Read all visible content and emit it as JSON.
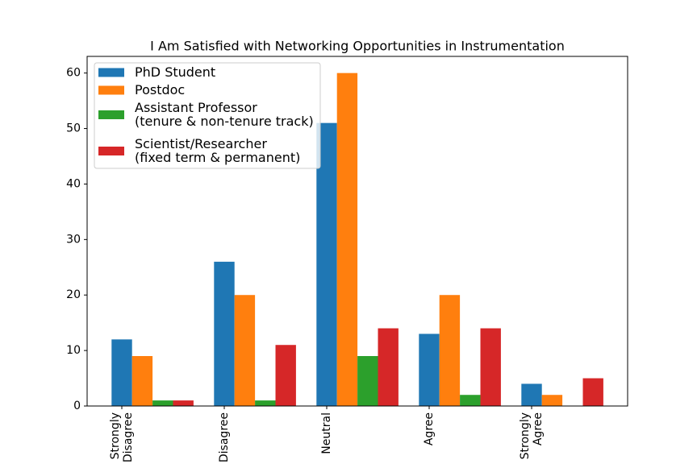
{
  "chart_data": {
    "type": "bar",
    "title": "I Am Satisfied with Networking Opportunities in Instrumentation",
    "categories": [
      "Strongly\nDisagree",
      "Disagree",
      "Neutral",
      "Agree",
      "Strongly\nAgree"
    ],
    "series": [
      {
        "name": "PhD Student",
        "color": "#1f77b4",
        "values": [
          12,
          26,
          51,
          13,
          4
        ]
      },
      {
        "name": "Postdoc",
        "color": "#ff7f0e",
        "values": [
          9,
          20,
          60,
          20,
          2
        ]
      },
      {
        "name": "Assistant Professor\n(tenure & non-tenure track)",
        "color": "#2ca02c",
        "values": [
          1,
          1,
          9,
          2,
          0
        ]
      },
      {
        "name": "Scientist/Researcher\n(fixed term & permanent)",
        "color": "#d62728",
        "values": [
          1,
          11,
          14,
          14,
          5
        ]
      }
    ],
    "ylim": [
      0,
      63
    ],
    "yticks": [
      0,
      10,
      20,
      30,
      40,
      50,
      60
    ],
    "legend": "upper left"
  }
}
